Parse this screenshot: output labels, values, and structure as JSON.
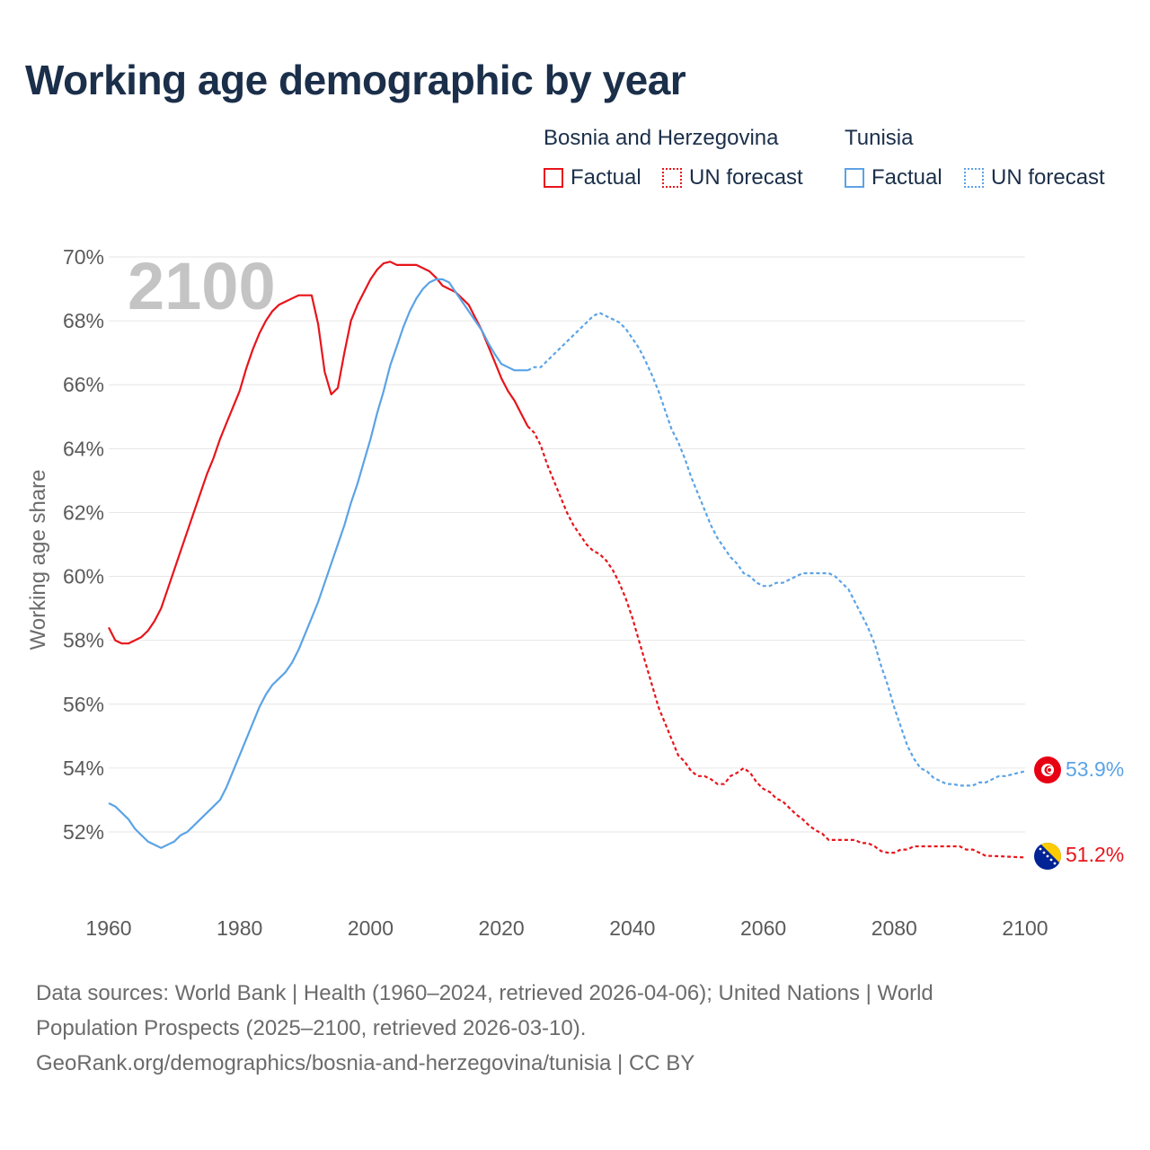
{
  "title": "Working age demographic by year",
  "legend": {
    "groups": [
      {
        "name": "Bosnia and Herzegovina",
        "factual_label": "Factual",
        "forecast_label": "UN forecast",
        "color": "#e8141b"
      },
      {
        "name": "Tunisia",
        "factual_label": "Factual",
        "forecast_label": "UN forecast",
        "color": "#5ba3e6"
      }
    ]
  },
  "year_watermark": "2100",
  "sources": {
    "line1": "Data sources: World Bank | Health (1960–2024, retrieved 2026-04-06); United Nations | World",
    "line2": "Population Prospects (2025–2100, retrieved 2026-03-10).",
    "line3": "GeoRank.org/demographics/bosnia-and-herzegovina/tunisia | CC BY"
  },
  "chart_data": {
    "type": "line",
    "title": "Working age demographic by year",
    "xlabel": "",
    "ylabel": "Working age share",
    "xlim": [
      1960,
      2100
    ],
    "ylim": [
      50.3,
      70.3
    ],
    "x_ticks": [
      1960,
      1980,
      2000,
      2020,
      2040,
      2060,
      2080,
      2100
    ],
    "y_ticks": [
      52,
      54,
      56,
      58,
      60,
      62,
      64,
      66,
      68,
      70
    ],
    "y_tick_labels": [
      "52%",
      "54%",
      "56%",
      "58%",
      "60%",
      "62%",
      "64%",
      "66%",
      "68%",
      "70%"
    ],
    "grid": true,
    "forecast_start": 2024,
    "series": [
      {
        "name": "Bosnia and Herzegovina",
        "color": "#e8141b",
        "end_label": "51.2%",
        "points": [
          [
            1960,
            58.4
          ],
          [
            1961,
            58.0
          ],
          [
            1962,
            57.9
          ],
          [
            1963,
            57.9
          ],
          [
            1964,
            58.0
          ],
          [
            1965,
            58.1
          ],
          [
            1966,
            58.3
          ],
          [
            1967,
            58.6
          ],
          [
            1968,
            59.0
          ],
          [
            1969,
            59.6
          ],
          [
            1970,
            60.2
          ],
          [
            1971,
            60.8
          ],
          [
            1972,
            61.4
          ],
          [
            1973,
            62.0
          ],
          [
            1974,
            62.6
          ],
          [
            1975,
            63.2
          ],
          [
            1976,
            63.7
          ],
          [
            1977,
            64.3
          ],
          [
            1978,
            64.8
          ],
          [
            1979,
            65.3
          ],
          [
            1980,
            65.8
          ],
          [
            1981,
            66.5
          ],
          [
            1982,
            67.1
          ],
          [
            1983,
            67.6
          ],
          [
            1984,
            68.0
          ],
          [
            1985,
            68.3
          ],
          [
            1986,
            68.5
          ],
          [
            1987,
            68.6
          ],
          [
            1988,
            68.7
          ],
          [
            1989,
            68.8
          ],
          [
            1990,
            68.8
          ],
          [
            1991,
            68.8
          ],
          [
            1992,
            67.9
          ],
          [
            1993,
            66.4
          ],
          [
            1994,
            65.7
          ],
          [
            1995,
            65.9
          ],
          [
            1996,
            67.0
          ],
          [
            1997,
            68.0
          ],
          [
            1998,
            68.5
          ],
          [
            1999,
            68.9
          ],
          [
            2000,
            69.3
          ],
          [
            2001,
            69.6
          ],
          [
            2002,
            69.8
          ],
          [
            2003,
            69.85
          ],
          [
            2004,
            69.75
          ],
          [
            2005,
            69.75
          ],
          [
            2006,
            69.75
          ],
          [
            2007,
            69.75
          ],
          [
            2008,
            69.65
          ],
          [
            2009,
            69.55
          ],
          [
            2010,
            69.35
          ],
          [
            2011,
            69.1
          ],
          [
            2012,
            69.0
          ],
          [
            2013,
            68.9
          ],
          [
            2014,
            68.7
          ],
          [
            2015,
            68.5
          ],
          [
            2016,
            68.1
          ],
          [
            2017,
            67.7
          ],
          [
            2018,
            67.2
          ],
          [
            2019,
            66.7
          ],
          [
            2020,
            66.2
          ],
          [
            2021,
            65.8
          ],
          [
            2022,
            65.5
          ],
          [
            2023,
            65.1
          ],
          [
            2024,
            64.7
          ],
          [
            2025,
            64.5
          ],
          [
            2026,
            64.1
          ],
          [
            2027,
            63.5
          ],
          [
            2028,
            63.0
          ],
          [
            2029,
            62.5
          ],
          [
            2030,
            62.0
          ],
          [
            2031,
            61.6
          ],
          [
            2032,
            61.3
          ],
          [
            2033,
            61.0
          ],
          [
            2034,
            60.8
          ],
          [
            2035,
            60.7
          ],
          [
            2036,
            60.5
          ],
          [
            2037,
            60.2
          ],
          [
            2038,
            59.8
          ],
          [
            2039,
            59.3
          ],
          [
            2040,
            58.7
          ],
          [
            2041,
            58.0
          ],
          [
            2042,
            57.3
          ],
          [
            2043,
            56.6
          ],
          [
            2044,
            55.9
          ],
          [
            2045,
            55.4
          ],
          [
            2046,
            54.9
          ],
          [
            2047,
            54.4
          ],
          [
            2048,
            54.2
          ],
          [
            2049,
            53.9
          ],
          [
            2050,
            53.75
          ],
          [
            2051,
            53.75
          ],
          [
            2052,
            53.65
          ],
          [
            2053,
            53.5
          ],
          [
            2054,
            53.5
          ],
          [
            2055,
            53.75
          ],
          [
            2056,
            53.85
          ],
          [
            2057,
            54.0
          ],
          [
            2058,
            53.85
          ],
          [
            2059,
            53.55
          ],
          [
            2060,
            53.35
          ],
          [
            2061,
            53.25
          ],
          [
            2062,
            53.05
          ],
          [
            2063,
            52.95
          ],
          [
            2064,
            52.75
          ],
          [
            2065,
            52.55
          ],
          [
            2066,
            52.4
          ],
          [
            2067,
            52.2
          ],
          [
            2068,
            52.05
          ],
          [
            2069,
            51.95
          ],
          [
            2070,
            51.75
          ],
          [
            2071,
            51.75
          ],
          [
            2072,
            51.75
          ],
          [
            2073,
            51.75
          ],
          [
            2074,
            51.75
          ],
          [
            2075,
            51.65
          ],
          [
            2076,
            51.65
          ],
          [
            2077,
            51.55
          ],
          [
            2078,
            51.4
          ],
          [
            2079,
            51.35
          ],
          [
            2080,
            51.35
          ],
          [
            2081,
            51.45
          ],
          [
            2082,
            51.45
          ],
          [
            2083,
            51.55
          ],
          [
            2084,
            51.55
          ],
          [
            2085,
            51.55
          ],
          [
            2086,
            51.55
          ],
          [
            2087,
            51.55
          ],
          [
            2088,
            51.55
          ],
          [
            2089,
            51.55
          ],
          [
            2090,
            51.55
          ],
          [
            2091,
            51.45
          ],
          [
            2092,
            51.45
          ],
          [
            2093,
            51.35
          ],
          [
            2094,
            51.25
          ],
          [
            2095,
            51.25
          ],
          [
            2100,
            51.2
          ]
        ]
      },
      {
        "name": "Tunisia",
        "color": "#5ba3e6",
        "end_label": "53.9%",
        "points": [
          [
            1960,
            52.9
          ],
          [
            1961,
            52.8
          ],
          [
            1962,
            52.6
          ],
          [
            1963,
            52.4
          ],
          [
            1964,
            52.1
          ],
          [
            1965,
            51.9
          ],
          [
            1966,
            51.7
          ],
          [
            1967,
            51.6
          ],
          [
            1968,
            51.5
          ],
          [
            1969,
            51.6
          ],
          [
            1970,
            51.7
          ],
          [
            1971,
            51.9
          ],
          [
            1972,
            52.0
          ],
          [
            1973,
            52.2
          ],
          [
            1974,
            52.4
          ],
          [
            1975,
            52.6
          ],
          [
            1976,
            52.8
          ],
          [
            1977,
            53.0
          ],
          [
            1978,
            53.4
          ],
          [
            1979,
            53.9
          ],
          [
            1980,
            54.4
          ],
          [
            1981,
            54.9
          ],
          [
            1982,
            55.4
          ],
          [
            1983,
            55.9
          ],
          [
            1984,
            56.3
          ],
          [
            1985,
            56.6
          ],
          [
            1986,
            56.8
          ],
          [
            1987,
            57.0
          ],
          [
            1988,
            57.3
          ],
          [
            1989,
            57.7
          ],
          [
            1990,
            58.2
          ],
          [
            1991,
            58.7
          ],
          [
            1992,
            59.2
          ],
          [
            1993,
            59.8
          ],
          [
            1994,
            60.4
          ],
          [
            1995,
            61.0
          ],
          [
            1996,
            61.6
          ],
          [
            1997,
            62.3
          ],
          [
            1998,
            62.9
          ],
          [
            1999,
            63.6
          ],
          [
            2000,
            64.3
          ],
          [
            2001,
            65.1
          ],
          [
            2002,
            65.8
          ],
          [
            2003,
            66.6
          ],
          [
            2004,
            67.2
          ],
          [
            2005,
            67.8
          ],
          [
            2006,
            68.3
          ],
          [
            2007,
            68.7
          ],
          [
            2008,
            69.0
          ],
          [
            2009,
            69.2
          ],
          [
            2010,
            69.3
          ],
          [
            2011,
            69.3
          ],
          [
            2012,
            69.2
          ],
          [
            2013,
            68.9
          ],
          [
            2014,
            68.6
          ],
          [
            2015,
            68.3
          ],
          [
            2016,
            68.0
          ],
          [
            2017,
            67.7
          ],
          [
            2018,
            67.3
          ],
          [
            2019,
            66.95
          ],
          [
            2020,
            66.65
          ],
          [
            2021,
            66.55
          ],
          [
            2022,
            66.45
          ],
          [
            2023,
            66.45
          ],
          [
            2024,
            66.45
          ],
          [
            2025,
            66.55
          ],
          [
            2026,
            66.55
          ],
          [
            2027,
            66.75
          ],
          [
            2028,
            66.95
          ],
          [
            2029,
            67.15
          ],
          [
            2030,
            67.35
          ],
          [
            2031,
            67.55
          ],
          [
            2032,
            67.75
          ],
          [
            2033,
            67.95
          ],
          [
            2034,
            68.15
          ],
          [
            2035,
            68.25
          ],
          [
            2036,
            68.15
          ],
          [
            2037,
            68.05
          ],
          [
            2038,
            67.95
          ],
          [
            2039,
            67.75
          ],
          [
            2040,
            67.45
          ],
          [
            2041,
            67.15
          ],
          [
            2042,
            66.75
          ],
          [
            2043,
            66.3
          ],
          [
            2044,
            65.8
          ],
          [
            2045,
            65.2
          ],
          [
            2046,
            64.6
          ],
          [
            2047,
            64.2
          ],
          [
            2048,
            63.7
          ],
          [
            2049,
            63.1
          ],
          [
            2050,
            62.6
          ],
          [
            2051,
            62.1
          ],
          [
            2052,
            61.6
          ],
          [
            2053,
            61.2
          ],
          [
            2054,
            60.9
          ],
          [
            2055,
            60.6
          ],
          [
            2056,
            60.4
          ],
          [
            2057,
            60.1
          ],
          [
            2058,
            60.0
          ],
          [
            2059,
            59.8
          ],
          [
            2060,
            59.7
          ],
          [
            2061,
            59.7
          ],
          [
            2062,
            59.8
          ],
          [
            2063,
            59.8
          ],
          [
            2064,
            59.9
          ],
          [
            2065,
            60.0
          ],
          [
            2066,
            60.1
          ],
          [
            2067,
            60.1
          ],
          [
            2068,
            60.1
          ],
          [
            2069,
            60.1
          ],
          [
            2070,
            60.1
          ],
          [
            2071,
            60.0
          ],
          [
            2072,
            59.8
          ],
          [
            2073,
            59.6
          ],
          [
            2074,
            59.2
          ],
          [
            2075,
            58.8
          ],
          [
            2076,
            58.4
          ],
          [
            2077,
            57.9
          ],
          [
            2078,
            57.2
          ],
          [
            2079,
            56.6
          ],
          [
            2080,
            55.9
          ],
          [
            2081,
            55.3
          ],
          [
            2082,
            54.7
          ],
          [
            2083,
            54.3
          ],
          [
            2084,
            54.0
          ],
          [
            2085,
            53.9
          ],
          [
            2086,
            53.7
          ],
          [
            2087,
            53.6
          ],
          [
            2088,
            53.5
          ],
          [
            2089,
            53.5
          ],
          [
            2090,
            53.45
          ],
          [
            2091,
            53.45
          ],
          [
            2092,
            53.45
          ],
          [
            2093,
            53.55
          ],
          [
            2094,
            53.55
          ],
          [
            2095,
            53.65
          ],
          [
            2096,
            53.75
          ],
          [
            2097,
            53.75
          ],
          [
            2098,
            53.8
          ],
          [
            2099,
            53.85
          ],
          [
            2100,
            53.9
          ]
        ]
      }
    ]
  }
}
